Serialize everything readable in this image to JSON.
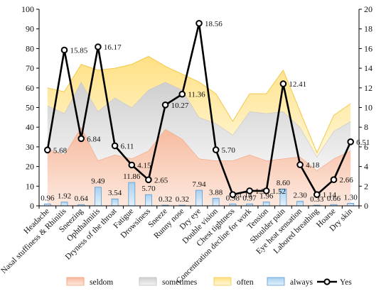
{
  "chart_data": {
    "type": "area",
    "title": "",
    "categories": [
      "Headache",
      "Nasal stuffiness & Rhinitis",
      "Sneezing",
      "Ophthalmitis",
      "Dryness of the throat",
      "Fatigue",
      "Drowsiness",
      "Sneeze",
      "Runny nose",
      "Dry eye",
      "Double vision",
      "Chest tightness",
      "Concentration decline for work",
      "Tension",
      "Shoulder pain",
      "Eye heat sensation",
      "Labored breathing",
      "Hoarse",
      "Dry skin"
    ],
    "left_axis": {
      "ylim": [
        0,
        100
      ],
      "ticks": [
        0,
        10,
        20,
        30,
        40,
        50,
        60,
        70,
        80,
        90,
        100
      ]
    },
    "right_axis": {
      "ylim": [
        0,
        20
      ],
      "ticks": [
        0,
        2,
        4,
        6,
        8,
        10,
        12,
        14,
        16,
        18,
        20
      ]
    },
    "stacked_series": [
      {
        "name": "seldom",
        "color": "#f4a582",
        "values": [
          29,
          26,
          40,
          23,
          26,
          24,
          28,
          39,
          34,
          24,
          23,
          23,
          26,
          23,
          24,
          25,
          18,
          24,
          28
        ]
      },
      {
        "name": "sometimes",
        "color": "#d9d9d9",
        "values": [
          22,
          21,
          23,
          25,
          29,
          26,
          31,
          24,
          25,
          21,
          19,
          13,
          22,
          24,
          24,
          15,
          7,
          14,
          15
        ]
      },
      {
        "name": "often",
        "color": "#ffe699",
        "values": [
          9,
          11,
          9,
          21,
          15,
          22,
          17,
          8,
          8,
          18,
          15,
          7,
          9,
          10,
          21,
          8,
          2,
          8,
          9
        ]
      },
      {
        "name": "always",
        "color": "#9dc3e6",
        "values": [
          0.96,
          1.92,
          0.64,
          9.49,
          3.54,
          11.86,
          5.7,
          0.32,
          0.32,
          7.94,
          3.88,
          0.98,
          0.97,
          1.96,
          8.6,
          2.3,
          0.33,
          0.66,
          1.3
        ]
      }
    ],
    "always_labels": [
      "0.96",
      "1.92",
      "0.64",
      "9.49",
      "3.54",
      "11.86",
      "5.70",
      "0.32",
      "0.32",
      "7.94",
      "3.88",
      "0.98",
      "0.97",
      "1.96",
      "8.60",
      "2.30",
      "0.33",
      "0.66",
      "1.30"
    ],
    "line_series": {
      "name": "Yes",
      "axis": "right",
      "color": "#000000",
      "values": [
        5.68,
        15.85,
        6.84,
        16.17,
        6.11,
        4.15,
        2.65,
        10.27,
        11.36,
        18.56,
        5.7,
        1.14,
        1.52,
        1.52,
        12.41,
        4.18,
        1.14,
        2.66,
        6.51
      ],
      "labels": [
        "5.68",
        "15.85",
        "6.84",
        "16.17",
        "6.11",
        "4.15",
        "2.65",
        "10.27",
        "11.36",
        "18.56",
        "5.70",
        "1.14",
        "1.52",
        "1.52",
        "12.41",
        "4.18",
        "1.14",
        "2.66",
        "6.51"
      ]
    },
    "legend": {
      "placement": "bottom",
      "items": [
        "seldom",
        "sometimes",
        "often",
        "always",
        "Yes"
      ]
    },
    "grid": false
  }
}
